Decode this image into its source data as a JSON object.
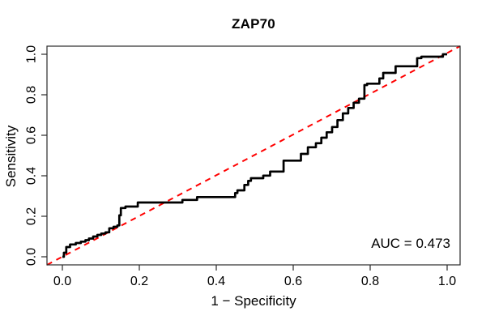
{
  "chart_data": {
    "type": "line",
    "subtype": "roc-step-curve",
    "title": "ZAP70",
    "xlabel": "1 − Specificity",
    "ylabel": "Sensitivity",
    "xlim": [
      0.0,
      1.0
    ],
    "ylim": [
      0.0,
      1.0
    ],
    "x_tick_labels": [
      "0.0",
      "0.2",
      "0.4",
      "0.6",
      "0.8",
      "1.0"
    ],
    "y_tick_labels": [
      "0.0",
      "0.2",
      "0.4",
      "0.6",
      "0.8",
      "1.0"
    ],
    "grid": "off",
    "legend": "none",
    "annotation": "AUC = 0.473",
    "auc_value": 0.473,
    "colors": {
      "curve": "#000000",
      "reference_line": "#ff0000",
      "box": "#2a2a2a",
      "text": "#000000"
    },
    "series": [
      {
        "name": "ROC curve",
        "style": "step",
        "color": "#000000",
        "points": [
          [
            0.0,
            0.0
          ],
          [
            0.004,
            0.02
          ],
          [
            0.01,
            0.048
          ],
          [
            0.02,
            0.061
          ],
          [
            0.035,
            0.068
          ],
          [
            0.048,
            0.075
          ],
          [
            0.06,
            0.082
          ],
          [
            0.069,
            0.09
          ],
          [
            0.08,
            0.1
          ],
          [
            0.091,
            0.108
          ],
          [
            0.101,
            0.115
          ],
          [
            0.112,
            0.121
          ],
          [
            0.122,
            0.141
          ],
          [
            0.133,
            0.148
          ],
          [
            0.143,
            0.155
          ],
          [
            0.148,
            0.205
          ],
          [
            0.152,
            0.241
          ],
          [
            0.164,
            0.248
          ],
          [
            0.196,
            0.268
          ],
          [
            0.312,
            0.281
          ],
          [
            0.35,
            0.295
          ],
          [
            0.449,
            0.315
          ],
          [
            0.455,
            0.328
          ],
          [
            0.473,
            0.355
          ],
          [
            0.483,
            0.375
          ],
          [
            0.49,
            0.388
          ],
          [
            0.522,
            0.401
          ],
          [
            0.54,
            0.421
          ],
          [
            0.575,
            0.475
          ],
          [
            0.62,
            0.508
          ],
          [
            0.638,
            0.541
          ],
          [
            0.659,
            0.561
          ],
          [
            0.673,
            0.588
          ],
          [
            0.687,
            0.615
          ],
          [
            0.701,
            0.641
          ],
          [
            0.715,
            0.675
          ],
          [
            0.729,
            0.708
          ],
          [
            0.743,
            0.735
          ],
          [
            0.757,
            0.761
          ],
          [
            0.771,
            0.781
          ],
          [
            0.785,
            0.848
          ],
          [
            0.792,
            0.855
          ],
          [
            0.824,
            0.881
          ],
          [
            0.834,
            0.908
          ],
          [
            0.866,
            0.941
          ],
          [
            0.922,
            0.981
          ],
          [
            0.933,
            0.988
          ],
          [
            0.989,
            1.0
          ],
          [
            1.0,
            1.0
          ]
        ]
      },
      {
        "name": "Chance reference diagonal",
        "style": "dashed",
        "color": "#ff0000",
        "points": [
          [
            0.0,
            0.0
          ],
          [
            1.0,
            1.0
          ]
        ]
      }
    ]
  }
}
